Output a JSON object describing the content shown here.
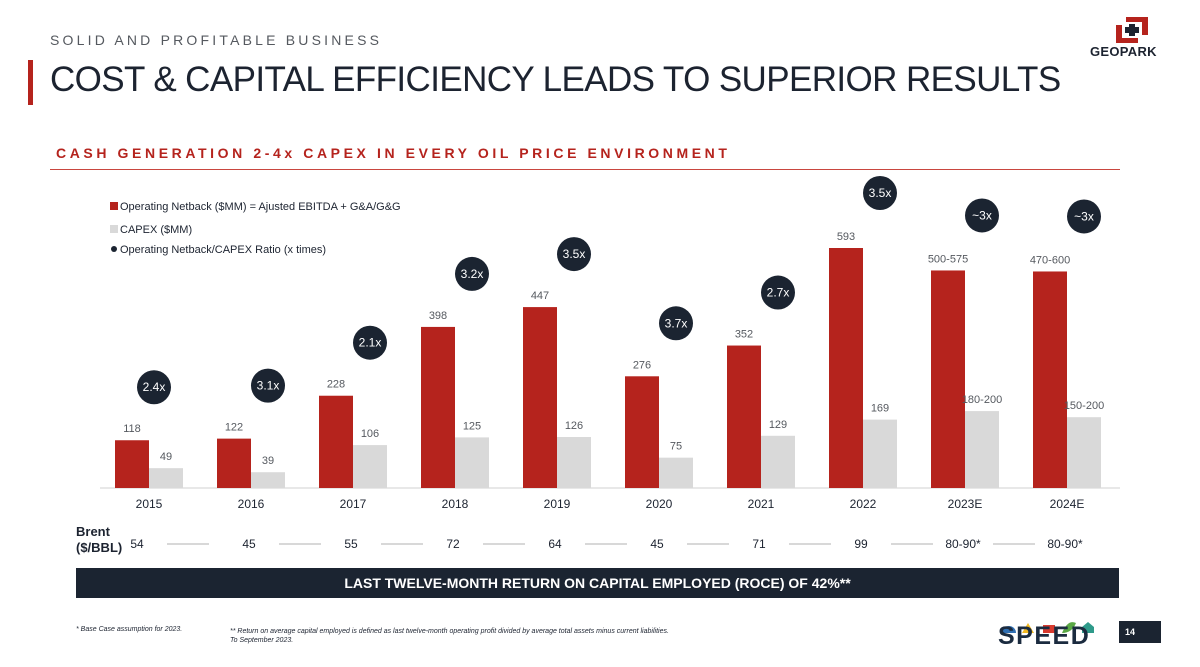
{
  "header": {
    "kicker": "SOLID AND PROFITABLE BUSINESS",
    "title": "COST & CAPITAL EFFICIENCY LEADS TO SUPERIOR RESULTS",
    "subtitle": "CASH GENERATION 2-4x CAPEX IN EVERY OIL PRICE ENVIRONMENT",
    "logo_text": "GEOPARK"
  },
  "colors": {
    "netback": "#b5231d",
    "capex": "#d9d9d9",
    "ratio": "#1b2431",
    "accent": "#b5231d"
  },
  "chart_data": {
    "type": "bar",
    "categories": [
      "2015",
      "2016",
      "2017",
      "2018",
      "2019",
      "2020",
      "2021",
      "2022",
      "2023E",
      "2024E"
    ],
    "series": [
      {
        "name": "Operating Netback ($MM) = Ajusted EBITDA + G&A/G&G",
        "values": [
          118,
          122,
          228,
          398,
          447,
          276,
          352,
          593,
          537.5,
          535
        ],
        "labels": [
          "118",
          "122",
          "228",
          "398",
          "447",
          "276",
          "352",
          "593",
          "500-575",
          "470-600"
        ]
      },
      {
        "name": "CAPEX ($MM)",
        "values": [
          49,
          39,
          106,
          125,
          126,
          75,
          129,
          169,
          190,
          175
        ],
        "labels": [
          "49",
          "39",
          "106",
          "125",
          "126",
          "75",
          "129",
          "169",
          "180-200",
          "150-200"
        ]
      }
    ],
    "ratio_series": {
      "name": "Operating Netback/CAPEX Ratio (x times)",
      "labels": [
        "2.4x",
        "3.1x",
        "2.1x",
        "3.2x",
        "3.5x",
        "3.7x",
        "2.7x",
        "3.5x",
        "~3x",
        "~3x"
      ]
    },
    "ylim": [
      0,
      620
    ]
  },
  "brent": {
    "label_line1": "Brent",
    "label_line2": "($/BBL)",
    "values": [
      "54",
      "45",
      "55",
      "72",
      "64",
      "45",
      "71",
      "99",
      "80-90*",
      "80-90*"
    ]
  },
  "roce_banner": "LAST TWELVE-MONTH RETURN ON CAPITAL EMPLOYED (ROCE) OF 42%**",
  "footnotes": {
    "base_case": "* Base Case assumption for 2023.",
    "roce_def_line1": "** Return on average capital employed is defined as last twelve-month operating profit divided by average total assets minus current liabilities.",
    "roce_def_line2": "To September 2023."
  },
  "speed_text": "SPEED",
  "page_number": "14"
}
